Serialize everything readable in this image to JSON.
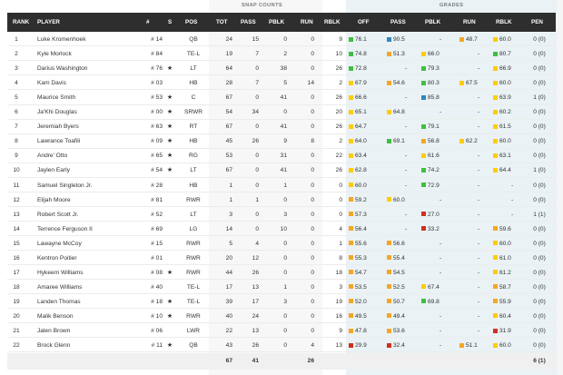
{
  "colors": {
    "green": "#3fbf3f",
    "yellow": "#ffcc00",
    "orange": "#f5a623",
    "red": "#d0311f",
    "blue": "#2e86c1",
    "header_bg": "#2e2e2e"
  },
  "groups": {
    "snap": "SNAP COUNTS",
    "grades": "GRADES"
  },
  "headers": {
    "rank": "RANK",
    "player": "PLAYER",
    "num": "#",
    "s": "S",
    "pos": "POS",
    "tot": "TOT",
    "pass": "PASS",
    "pblk": "PBLK",
    "run": "RUN",
    "rblk": "RBLK",
    "g_off": "OFF",
    "g_pass": "PASS",
    "g_pblk": "PBLK",
    "g_run": "RUN",
    "g_rblk": "RBLK",
    "pen": "PEN"
  },
  "rows": [
    {
      "rank": "1",
      "player": "Luke Kromenhoek",
      "num": "# 14",
      "star": "",
      "pos": "QB",
      "tot": "24",
      "pass": "15",
      "pblk": "0",
      "run": "0",
      "rblk": "9",
      "off": "76.1",
      "off_c": "green",
      "gpass": "90.5",
      "gpass_c": "blue",
      "gpblk": "-",
      "gpblk_c": "",
      "grun": "48.7",
      "grun_c": "orange",
      "grblk": "60.0",
      "grblk_c": "yellow",
      "pen": "0 (0)"
    },
    {
      "rank": "2",
      "player": "Kyle Morlock",
      "num": "# 84",
      "star": "",
      "pos": "TE-L",
      "tot": "19",
      "pass": "7",
      "pblk": "2",
      "run": "0",
      "rblk": "10",
      "off": "74.8",
      "off_c": "green",
      "gpass": "51.3",
      "gpass_c": "orange",
      "gpblk": "66.0",
      "gpblk_c": "yellow",
      "grun": "-",
      "grun_c": "",
      "grblk": "80.7",
      "grblk_c": "green",
      "pen": "0 (0)"
    },
    {
      "rank": "3",
      "player": "Darius Washington",
      "num": "# 76",
      "star": "★",
      "pos": "LT",
      "tot": "64",
      "pass": "0",
      "pblk": "38",
      "run": "0",
      "rblk": "26",
      "off": "72.8",
      "off_c": "green",
      "gpass": "-",
      "gpass_c": "",
      "gpblk": "79.3",
      "gpblk_c": "green",
      "grun": "-",
      "grun_c": "",
      "grblk": "66.9",
      "grblk_c": "yellow",
      "pen": "0 (0)"
    },
    {
      "rank": "4",
      "player": "Kam Davis",
      "num": "# 03",
      "star": "",
      "pos": "HB",
      "tot": "28",
      "pass": "7",
      "pblk": "5",
      "run": "14",
      "rblk": "2",
      "off": "67.9",
      "off_c": "yellow",
      "gpass": "54.6",
      "gpass_c": "orange",
      "gpblk": "80.3",
      "gpblk_c": "green",
      "grun": "67.5",
      "grun_c": "yellow",
      "grblk": "60.0",
      "grblk_c": "yellow",
      "pen": "0 (0)"
    },
    {
      "rank": "5",
      "player": "Maurice Smith",
      "num": "# 53",
      "star": "★",
      "pos": "C",
      "tot": "67",
      "pass": "0",
      "pblk": "41",
      "run": "0",
      "rblk": "26",
      "off": "66.6",
      "off_c": "yellow",
      "gpass": "-",
      "gpass_c": "",
      "gpblk": "85.8",
      "gpblk_c": "blue",
      "grun": "-",
      "grun_c": "",
      "grblk": "63.9",
      "grblk_c": "yellow",
      "pen": "1 (0)"
    },
    {
      "rank": "6",
      "player": "Ja'Khi Douglas",
      "num": "# 00",
      "star": "★",
      "pos": "SRWR",
      "tot": "54",
      "pass": "34",
      "pblk": "0",
      "run": "0",
      "rblk": "20",
      "off": "65.1",
      "off_c": "yellow",
      "gpass": "64.8",
      "gpass_c": "yellow",
      "gpblk": "-",
      "gpblk_c": "",
      "grun": "-",
      "grun_c": "",
      "grblk": "60.2",
      "grblk_c": "yellow",
      "pen": "0 (0)"
    },
    {
      "rank": "7",
      "player": "Jeremiah Byers",
      "num": "# 63",
      "star": "★",
      "pos": "RT",
      "tot": "67",
      "pass": "0",
      "pblk": "41",
      "run": "0",
      "rblk": "26",
      "off": "64.7",
      "off_c": "yellow",
      "gpass": "-",
      "gpass_c": "",
      "gpblk": "79.1",
      "gpblk_c": "green",
      "grun": "-",
      "grun_c": "",
      "grblk": "61.5",
      "grblk_c": "yellow",
      "pen": "0 (0)"
    },
    {
      "rank": "8",
      "player": "Lawrance Toafili",
      "num": "# 09",
      "star": "★",
      "pos": "HB",
      "tot": "45",
      "pass": "26",
      "pblk": "9",
      "run": "8",
      "rblk": "2",
      "off": "64.0",
      "off_c": "yellow",
      "gpass": "69.1",
      "gpass_c": "green",
      "gpblk": "56.8",
      "gpblk_c": "orange",
      "grun": "62.2",
      "grun_c": "yellow",
      "grblk": "60.0",
      "grblk_c": "yellow",
      "pen": "0 (0)"
    },
    {
      "rank": "9",
      "player": "Andre' Otto",
      "num": "# 65",
      "star": "★",
      "pos": "RG",
      "tot": "53",
      "pass": "0",
      "pblk": "31",
      "run": "0",
      "rblk": "22",
      "off": "63.4",
      "off_c": "yellow",
      "gpass": "-",
      "gpass_c": "",
      "gpblk": "61.6",
      "gpblk_c": "yellow",
      "grun": "-",
      "grun_c": "",
      "grblk": "63.1",
      "grblk_c": "yellow",
      "pen": "0 (0)"
    },
    {
      "rank": "10",
      "player": "Jaylen Early",
      "num": "# 54",
      "star": "★",
      "pos": "LT",
      "tot": "67",
      "pass": "0",
      "pblk": "41",
      "run": "0",
      "rblk": "26",
      "off": "62.8",
      "off_c": "yellow",
      "gpass": "-",
      "gpass_c": "",
      "gpblk": "74.2",
      "gpblk_c": "green",
      "grun": "-",
      "grun_c": "",
      "grblk": "64.4",
      "grblk_c": "yellow",
      "pen": "1 (0)"
    },
    {
      "rank": "11",
      "player": "Samuel Singleton Jr.",
      "num": "# 28",
      "star": "",
      "pos": "HB",
      "tot": "1",
      "pass": "0",
      "pblk": "1",
      "run": "0",
      "rblk": "0",
      "off": "60.0",
      "off_c": "yellow",
      "gpass": "-",
      "gpass_c": "",
      "gpblk": "72.9",
      "gpblk_c": "green",
      "grun": "-",
      "grun_c": "",
      "grblk": "-",
      "grblk_c": "",
      "pen": "0 (0)"
    },
    {
      "rank": "12",
      "player": "Elijah Moore",
      "num": "# 81",
      "star": "",
      "pos": "RWR",
      "tot": "1",
      "pass": "1",
      "pblk": "0",
      "run": "0",
      "rblk": "0",
      "off": "59.2",
      "off_c": "orange",
      "gpass": "60.0",
      "gpass_c": "yellow",
      "gpblk": "-",
      "gpblk_c": "",
      "grun": "-",
      "grun_c": "",
      "grblk": "-",
      "grblk_c": "",
      "pen": "0 (0)"
    },
    {
      "rank": "13",
      "player": "Robert Scott Jr.",
      "num": "# 52",
      "star": "",
      "pos": "LT",
      "tot": "3",
      "pass": "0",
      "pblk": "3",
      "run": "0",
      "rblk": "0",
      "off": "57.3",
      "off_c": "orange",
      "gpass": "-",
      "gpass_c": "",
      "gpblk": "27.0",
      "gpblk_c": "red",
      "grun": "-",
      "grun_c": "",
      "grblk": "-",
      "grblk_c": "",
      "pen": "1 (1)"
    },
    {
      "rank": "14",
      "player": "Terrence Ferguson II",
      "num": "# 69",
      "star": "",
      "pos": "LG",
      "tot": "14",
      "pass": "0",
      "pblk": "10",
      "run": "0",
      "rblk": "4",
      "off": "56.4",
      "off_c": "orange",
      "gpass": "-",
      "gpass_c": "",
      "gpblk": "33.2",
      "gpblk_c": "red",
      "grun": "-",
      "grun_c": "",
      "grblk": "59.6",
      "grblk_c": "orange",
      "pen": "0 (0)"
    },
    {
      "rank": "15",
      "player": "Lawayne McCoy",
      "num": "# 15",
      "star": "",
      "pos": "RWR",
      "tot": "5",
      "pass": "4",
      "pblk": "0",
      "run": "0",
      "rblk": "1",
      "off": "55.6",
      "off_c": "orange",
      "gpass": "56.6",
      "gpass_c": "orange",
      "gpblk": "-",
      "gpblk_c": "",
      "grun": "-",
      "grun_c": "",
      "grblk": "60.0",
      "grblk_c": "yellow",
      "pen": "0 (0)"
    },
    {
      "rank": "16",
      "player": "Kentron Poitier",
      "num": "# 01",
      "star": "",
      "pos": "RWR",
      "tot": "20",
      "pass": "12",
      "pblk": "0",
      "run": "0",
      "rblk": "8",
      "off": "55.3",
      "off_c": "orange",
      "gpass": "55.4",
      "gpass_c": "orange",
      "gpblk": "-",
      "gpblk_c": "",
      "grun": "-",
      "grun_c": "",
      "grblk": "61.0",
      "grblk_c": "yellow",
      "pen": "0 (0)"
    },
    {
      "rank": "17",
      "player": "Hykeem Williams",
      "num": "# 08",
      "star": "★",
      "pos": "RWR",
      "tot": "44",
      "pass": "26",
      "pblk": "0",
      "run": "0",
      "rblk": "18",
      "off": "54.7",
      "off_c": "orange",
      "gpass": "54.5",
      "gpass_c": "orange",
      "gpblk": "-",
      "gpblk_c": "",
      "grun": "-",
      "grun_c": "",
      "grblk": "61.2",
      "grblk_c": "yellow",
      "pen": "0 (0)"
    },
    {
      "rank": "18",
      "player": "Amaree Williams",
      "num": "# 40",
      "star": "",
      "pos": "TE-L",
      "tot": "17",
      "pass": "13",
      "pblk": "1",
      "run": "0",
      "rblk": "3",
      "off": "53.5",
      "off_c": "orange",
      "gpass": "52.5",
      "gpass_c": "orange",
      "gpblk": "67.4",
      "gpblk_c": "yellow",
      "grun": "-",
      "grun_c": "",
      "grblk": "58.7",
      "grblk_c": "orange",
      "pen": "0 (0)"
    },
    {
      "rank": "19",
      "player": "Landen Thomas",
      "num": "# 18",
      "star": "★",
      "pos": "TE-L",
      "tot": "39",
      "pass": "17",
      "pblk": "3",
      "run": "0",
      "rblk": "19",
      "off": "52.0",
      "off_c": "orange",
      "gpass": "50.7",
      "gpass_c": "orange",
      "gpblk": "69.8",
      "gpblk_c": "green",
      "grun": "-",
      "grun_c": "",
      "grblk": "55.9",
      "grblk_c": "orange",
      "pen": "0 (0)"
    },
    {
      "rank": "20",
      "player": "Malik Benson",
      "num": "# 10",
      "star": "★",
      "pos": "RWR",
      "tot": "40",
      "pass": "24",
      "pblk": "0",
      "run": "0",
      "rblk": "16",
      "off": "49.5",
      "off_c": "orange",
      "gpass": "49.4",
      "gpass_c": "orange",
      "gpblk": "-",
      "gpblk_c": "",
      "grun": "-",
      "grun_c": "",
      "grblk": "60.4",
      "grblk_c": "yellow",
      "pen": "0 (0)"
    },
    {
      "rank": "21",
      "player": "Jalen Brown",
      "num": "# 06",
      "star": "",
      "pos": "LWR",
      "tot": "22",
      "pass": "13",
      "pblk": "0",
      "run": "0",
      "rblk": "9",
      "off": "47.8",
      "off_c": "orange",
      "gpass": "53.6",
      "gpass_c": "orange",
      "gpblk": "-",
      "gpblk_c": "",
      "grun": "-",
      "grun_c": "",
      "grblk": "31.9",
      "grblk_c": "red",
      "pen": "0 (0)"
    },
    {
      "rank": "22",
      "player": "Brock Glenn",
      "num": "# 11",
      "star": "★",
      "pos": "QB",
      "tot": "43",
      "pass": "26",
      "pblk": "0",
      "run": "4",
      "rblk": "13",
      "off": "29.9",
      "off_c": "red",
      "gpass": "32.4",
      "gpass_c": "red",
      "gpblk": "-",
      "gpblk_c": "",
      "grun": "51.1",
      "grun_c": "orange",
      "grblk": "60.0",
      "grblk_c": "yellow",
      "pen": "0 (0)"
    }
  ],
  "totals": {
    "tot": "67",
    "pass": "41",
    "pblk": "26",
    "pen": "6 (1)"
  }
}
